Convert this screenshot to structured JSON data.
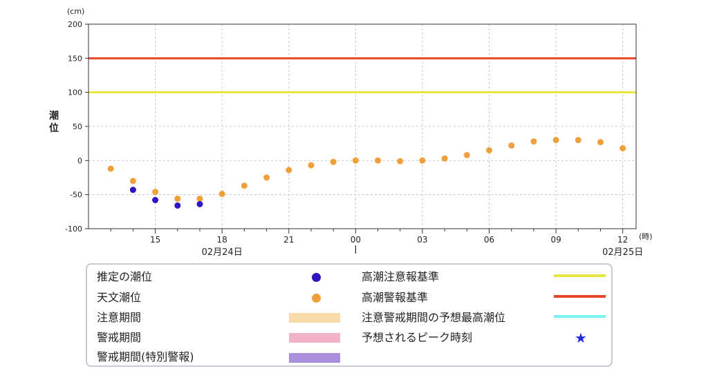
{
  "chart_data": {
    "type": "scatter",
    "title": "",
    "ylabel": "潮位",
    "yunit": "(cm)",
    "xunit": "(時)",
    "ylim": [
      -100,
      200
    ],
    "yticks": [
      -100,
      -50,
      0,
      50,
      100,
      150,
      200
    ],
    "grid": true,
    "xticks": [
      {
        "hour": 15,
        "label": "15"
      },
      {
        "hour": 18,
        "label": "18"
      },
      {
        "hour": 21,
        "label": "21"
      },
      {
        "hour": 24,
        "label": "00"
      },
      {
        "hour": 27,
        "label": "03"
      },
      {
        "hour": 30,
        "label": "06"
      },
      {
        "hour": 33,
        "label": "09"
      },
      {
        "hour": 36,
        "label": "12"
      }
    ],
    "date_labels": [
      {
        "hour": 18,
        "label": "02月24日"
      },
      {
        "hour": 36,
        "label": "02月25日"
      }
    ],
    "thresholds": [
      {
        "name": "高潮注意報基準",
        "value": 100,
        "color": "#e8e440"
      },
      {
        "name": "高潮警報基準",
        "value": 150,
        "color": "#e8472c"
      }
    ],
    "series": [
      {
        "name": "推定の潮位",
        "color": "#2f14c4",
        "x": [
          14,
          15,
          16,
          17
        ],
        "y": [
          -43,
          -58,
          -66,
          -64
        ]
      },
      {
        "name": "天文潮位",
        "color": "#f0a03a",
        "x": [
          13,
          14,
          15,
          16,
          17,
          18,
          19,
          20,
          21,
          22,
          23,
          24,
          25,
          26,
          27,
          28,
          29,
          30,
          31,
          32,
          33,
          34,
          35,
          36
        ],
        "y": [
          -12,
          -30,
          -46,
          -56,
          -56,
          -49,
          -37,
          -25,
          -14,
          -7,
          -2,
          0,
          0,
          -1,
          0,
          3,
          8,
          15,
          22,
          28,
          30,
          30,
          27,
          18
        ]
      }
    ]
  },
  "legend": {
    "estimated": "推定の潮位",
    "astronomical": "天文潮位",
    "caution_period": "注意期間",
    "warning_period": "警戒期間",
    "special_period": "警戒期間(特別警報)",
    "advisory_level": "高潮注意報基準",
    "warning_level": "高潮警報基準",
    "forecast_max": "注意警戒期間の予想最高潮位",
    "peak_time": "予想されるピーク時刻",
    "colors": {
      "estimated": "#2f14c4",
      "astronomical": "#f0a03a",
      "caution_period": "#f7dcaa",
      "warning_period": "#f2b2c8",
      "special_period": "#aa8fdd",
      "advisory_level": "#e8e440",
      "warning_level": "#e8472c",
      "forecast_max": "#7bf1f3",
      "peak_time": "#1d2be0"
    },
    "peak_icon": "star-icon",
    "peak_glyph": "★"
  }
}
